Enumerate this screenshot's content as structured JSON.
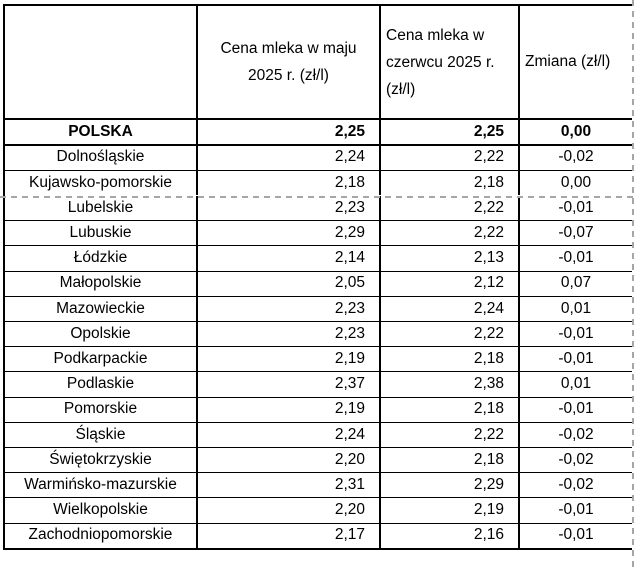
{
  "colors": {
    "background": "#ffffff",
    "border": "#000000",
    "page_break_dash": "#a6a6a6",
    "text": "#000000"
  },
  "table": {
    "header": {
      "region": "",
      "may": {
        "line1": "Cena mleka w maju",
        "line2": "2025 r. (zł/l)"
      },
      "june": {
        "line1": "Cena mleka w",
        "line2": "czerwcu 2025 r.",
        "line3": "(zł/l)"
      },
      "change": "Zmiana (zł/l)"
    },
    "rows": [
      {
        "region": "POLSKA",
        "may": "2,25",
        "june": "2,25",
        "change": "0,00",
        "bold": true
      },
      {
        "region": "Dolnośląskie",
        "may": "2,24",
        "june": "2,22",
        "change": "-0,02"
      },
      {
        "region": "Kujawsko-pomorskie",
        "may": "2,18",
        "june": "2,18",
        "change": "0,00"
      },
      {
        "region": "Lubelskie",
        "may": "2,23",
        "june": "2,22",
        "change": "-0,01"
      },
      {
        "region": "Lubuskie",
        "may": "2,29",
        "june": "2,22",
        "change": "-0,07"
      },
      {
        "region": "Łódzkie",
        "may": "2,14",
        "june": "2,13",
        "change": "-0,01"
      },
      {
        "region": "Małopolskie",
        "may": "2,05",
        "june": "2,12",
        "change": "0,07"
      },
      {
        "region": "Mazowieckie",
        "may": "2,23",
        "june": "2,24",
        "change": "0,01"
      },
      {
        "region": "Opolskie",
        "may": "2,23",
        "june": "2,22",
        "change": "-0,01"
      },
      {
        "region": "Podkarpackie",
        "may": "2,19",
        "june": "2,18",
        "change": "-0,01"
      },
      {
        "region": "Podlaskie",
        "may": "2,37",
        "june": "2,38",
        "change": "0,01"
      },
      {
        "region": "Pomorskie",
        "may": "2,19",
        "june": "2,18",
        "change": "-0,01"
      },
      {
        "region": "Śląskie",
        "may": "2,24",
        "june": "2,22",
        "change": "-0,02"
      },
      {
        "region": "Świętokrzyskie",
        "may": "2,20",
        "june": "2,18",
        "change": "-0,02"
      },
      {
        "region": "Warmińsko-mazurskie",
        "may": "2,31",
        "june": "2,29",
        "change": "-0,02"
      },
      {
        "region": "Wielkopolskie",
        "may": "2,20",
        "june": "2,19",
        "change": "-0,01"
      },
      {
        "region": "Zachodniopomorskie",
        "may": "2,17",
        "june": "2,16",
        "change": "-0,01"
      }
    ]
  }
}
